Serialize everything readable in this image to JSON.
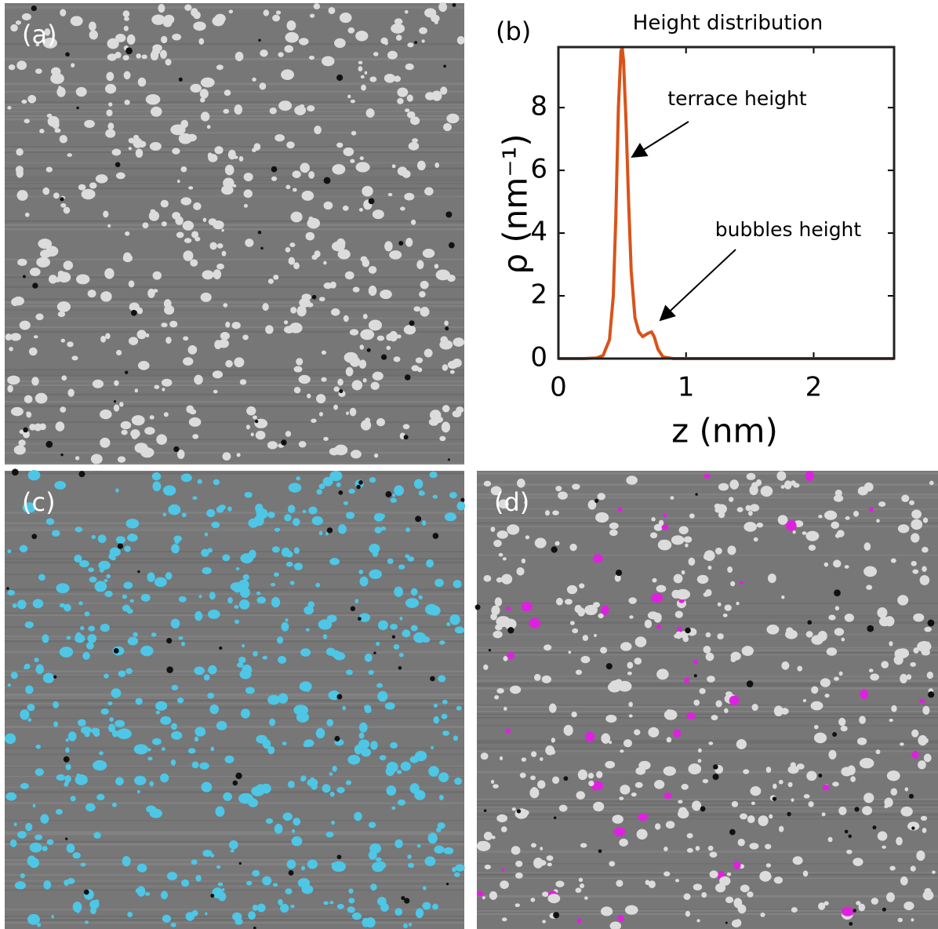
{
  "panel_labels": [
    "(a)",
    "(b)",
    "(c)",
    "(d)"
  ],
  "chart_data": {
    "type": "line",
    "title": "Height distribution",
    "xlabel": "z (nm)",
    "ylabel": "ρ (nm⁻¹)",
    "x": [
      0,
      0.2,
      0.3,
      0.35,
      0.4,
      0.43,
      0.45,
      0.47,
      0.49,
      0.5,
      0.51,
      0.53,
      0.55,
      0.57,
      0.6,
      0.63,
      0.66,
      0.7,
      0.73,
      0.75,
      0.78,
      0.82,
      0.9,
      1.0,
      1.5,
      2.0,
      2.63
    ],
    "values": [
      0,
      0,
      0.02,
      0.1,
      0.6,
      2.0,
      4.5,
      8,
      9.8,
      9.9,
      9.5,
      7.5,
      5,
      2.8,
      1.3,
      0.85,
      0.7,
      0.8,
      0.85,
      0.7,
      0.3,
      0.05,
      0,
      0,
      0,
      0,
      0
    ],
    "color": "#d95319",
    "xlim": [
      0,
      2.63
    ],
    "ylim": [
      0,
      9.93
    ],
    "xticks": [
      0,
      1,
      2
    ],
    "yticks": [
      0,
      2,
      4,
      6,
      8
    ],
    "annotations": [
      "terrace height",
      "bubbles height"
    ]
  }
}
